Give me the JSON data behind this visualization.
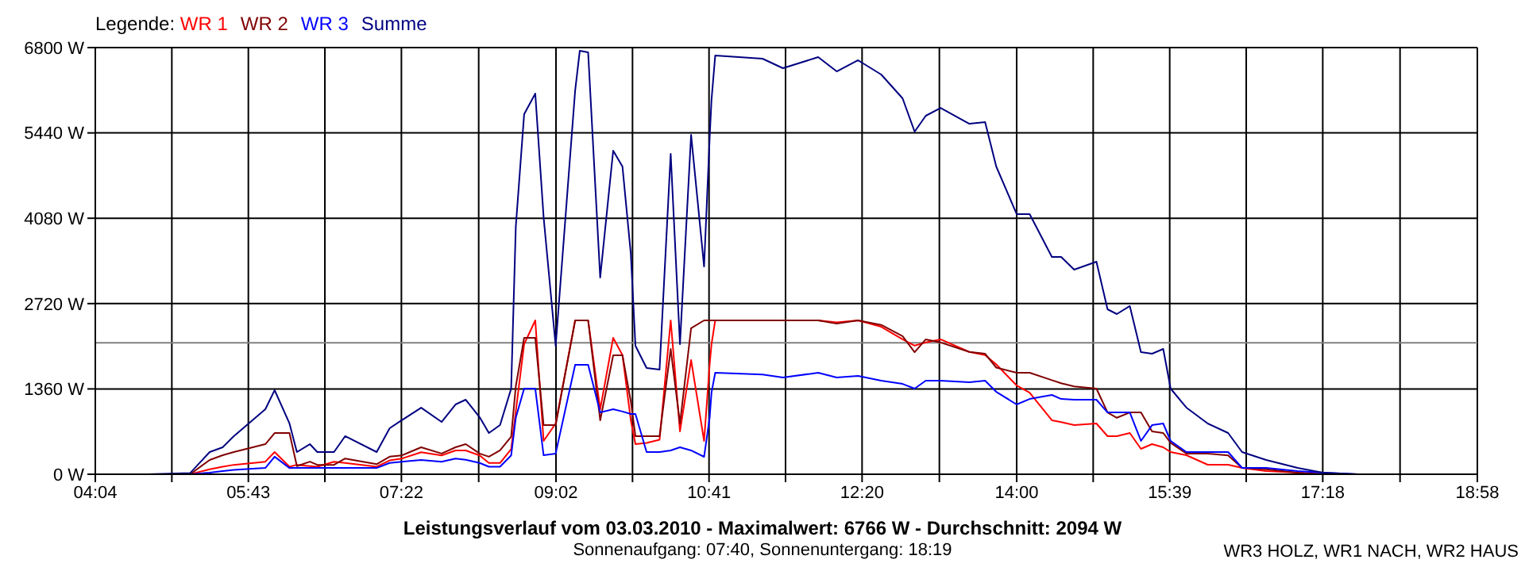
{
  "chart_data": {
    "type": "line",
    "title": "Leistungsverlauf vom 03.03.2010 - Maximalwert: 6766 W - Durchschnitt: 2094 W",
    "subtitle": "Sonnenaufgang: 07:40, Sonnenuntergang: 18:19",
    "legend_title": "Legende:",
    "legend": "top left",
    "grid": true,
    "annotations": [
      "WR3 HOLZ, WR1 NACH, WR2 HAUS"
    ],
    "x": [
      4.63,
      5.09,
      5.3,
      5.44,
      5.56,
      5.9,
      6.0,
      6.16,
      6.24,
      6.38,
      6.46,
      6.64,
      6.76,
      7.1,
      7.24,
      7.37,
      7.58,
      7.8,
      7.95,
      8.06,
      8.21,
      8.31,
      8.43,
      8.55,
      8.6,
      8.69,
      8.81,
      8.9,
      9.03,
      9.24,
      9.29,
      9.38,
      9.51,
      9.65,
      9.75,
      9.84,
      9.89,
      10.01,
      10.15,
      10.27,
      10.37,
      10.49,
      10.63,
      10.69,
      10.71,
      10.75,
      11.26,
      11.48,
      11.86,
      12.06,
      12.29,
      12.54,
      12.77,
      12.9,
      13.02,
      13.18,
      13.49,
      13.66,
      13.78,
      14.0,
      14.14,
      14.38,
      14.48,
      14.62,
      14.86,
      14.98,
      15.08,
      15.22,
      15.34,
      15.46,
      15.58,
      15.66,
      15.83,
      16.06,
      16.28,
      16.43,
      16.69,
      17.03,
      17.3,
      17.68
    ],
    "series": [
      {
        "name": "WR 1",
        "color": "#ff0000",
        "values": [
          0,
          0,
          80,
          120,
          150,
          200,
          354,
          120,
          150,
          130,
          120,
          200,
          180,
          120,
          220,
          250,
          350,
          300,
          380,
          380,
          300,
          180,
          180,
          400,
          1000,
          2073,
          2452,
          531,
          809,
          2452,
          2452,
          2452,
          1036,
          2174,
          1900,
          860,
          480,
          500,
          550,
          2452,
          683,
          1820,
          531,
          1744,
          2073,
          2452,
          2452,
          2452,
          2452,
          2420,
          2452,
          2350,
          2150,
          2050,
          2100,
          2150,
          1950,
          1900,
          1750,
          1415,
          1300,
          860,
          830,
          783,
          809,
          607,
          607,
          657,
          404,
          480,
          430,
          354,
          303,
          152,
          152,
          101,
          50,
          25,
          0,
          0
        ]
      },
      {
        "name": "WR 2",
        "color": "#800000",
        "values": [
          0,
          0,
          228,
          303,
          354,
          480,
          657,
          657,
          130,
          200,
          150,
          150,
          250,
          160,
          280,
          300,
          430,
          330,
          430,
          480,
          330,
          280,
          380,
          600,
          1400,
          2174,
          2174,
          783,
          783,
          2452,
          2452,
          2452,
          860,
          1896,
          1896,
          1163,
          607,
          607,
          607,
          1997,
          809,
          2326,
          2452,
          2452,
          2452,
          2452,
          2452,
          2452,
          2452,
          2400,
          2452,
          2380,
          2200,
          1946,
          2150,
          2100,
          1950,
          1920,
          1700,
          1618,
          1618,
          1500,
          1450,
          1400,
          1365,
          985,
          900,
          985,
          985,
          683,
          657,
          500,
          330,
          330,
          300,
          101,
          80,
          25,
          0,
          0
        ]
      },
      {
        "name": "WR 3",
        "color": "#0000ff",
        "values": [
          0,
          0,
          25,
          50,
          70,
          100,
          280,
          100,
          100,
          100,
          100,
          100,
          100,
          100,
          180,
          200,
          228,
          200,
          250,
          230,
          180,
          120,
          120,
          300,
          900,
          1365,
          1365,
          303,
          330,
          1744,
          1744,
          1744,
          985,
          1036,
          1000,
          960,
          960,
          354,
          354,
          380,
          430,
          380,
          278,
          900,
          1300,
          1618,
          1590,
          1542,
          1618,
          1542,
          1568,
          1491,
          1440,
          1365,
          1491,
          1491,
          1465,
          1491,
          1314,
          1112,
          1200,
          1264,
          1200,
          1188,
          1188,
          985,
          985,
          985,
          531,
          783,
          809,
          531,
          354,
          354,
          354,
          101,
          101,
          50,
          25,
          0
        ]
      },
      {
        "name": "Summe",
        "color": "#000080",
        "values": [
          0,
          20,
          354,
          430,
          607,
          1036,
          1340,
          810,
          354,
          480,
          354,
          354,
          607,
          354,
          733,
          860,
          1060,
          834,
          1112,
          1188,
          910,
          657,
          783,
          1365,
          3943,
          5738,
          6067,
          4095,
          2047,
          6117,
          6750,
          6724,
          3135,
          5157,
          4904,
          3514,
          2047,
          1694,
          1668,
          5106,
          2073,
          5410,
          3311,
          5359,
          5966,
          6673,
          6623,
          6471,
          6648,
          6420,
          6598,
          6370,
          5991,
          5460,
          5713,
          5839,
          5586,
          5612,
          4904,
          4146,
          4146,
          3463,
          3463,
          3261,
          3387,
          2629,
          2553,
          2680,
          1946,
          1921,
          1997,
          1365,
          1062,
          809,
          657,
          354,
          228,
          101,
          25,
          0
        ]
      }
    ],
    "xlim": [
      4.0667,
      18.9667
    ],
    "xticks": [
      {
        "value": 4.0667,
        "label": "04:04"
      },
      {
        "value": 4.8917,
        "label": null
      },
      {
        "value": 5.7167,
        "label": "05:43"
      },
      {
        "value": 6.5417,
        "label": null
      },
      {
        "value": 7.3667,
        "label": "07:22"
      },
      {
        "value": 8.2,
        "label": null
      },
      {
        "value": 9.0333,
        "label": "09:02"
      },
      {
        "value": 9.8583,
        "label": null
      },
      {
        "value": 10.6833,
        "label": "10:41"
      },
      {
        "value": 11.5083,
        "label": null
      },
      {
        "value": 12.3333,
        "label": "12:20"
      },
      {
        "value": 13.1667,
        "label": null
      },
      {
        "value": 14.0,
        "label": "14:00"
      },
      {
        "value": 14.825,
        "label": null
      },
      {
        "value": 15.65,
        "label": "15:39"
      },
      {
        "value": 16.475,
        "label": null
      },
      {
        "value": 17.3,
        "label": "17:18"
      },
      {
        "value": 18.1333,
        "label": null
      },
      {
        "value": 18.9667,
        "label": "18:58"
      }
    ],
    "ylim": [
      0,
      6800
    ],
    "yticks": [
      {
        "value": 0,
        "label": "0 W"
      },
      {
        "value": 1360,
        "label": "1360 W"
      },
      {
        "value": 2720,
        "label": "2720 W"
      },
      {
        "value": 4080,
        "label": "4080 W"
      },
      {
        "value": 5440,
        "label": "5440 W"
      },
      {
        "value": 6800,
        "label": "6800 W"
      }
    ],
    "ref_lines": [
      {
        "axis": "y",
        "value": 2094,
        "color": "#808080"
      }
    ]
  }
}
